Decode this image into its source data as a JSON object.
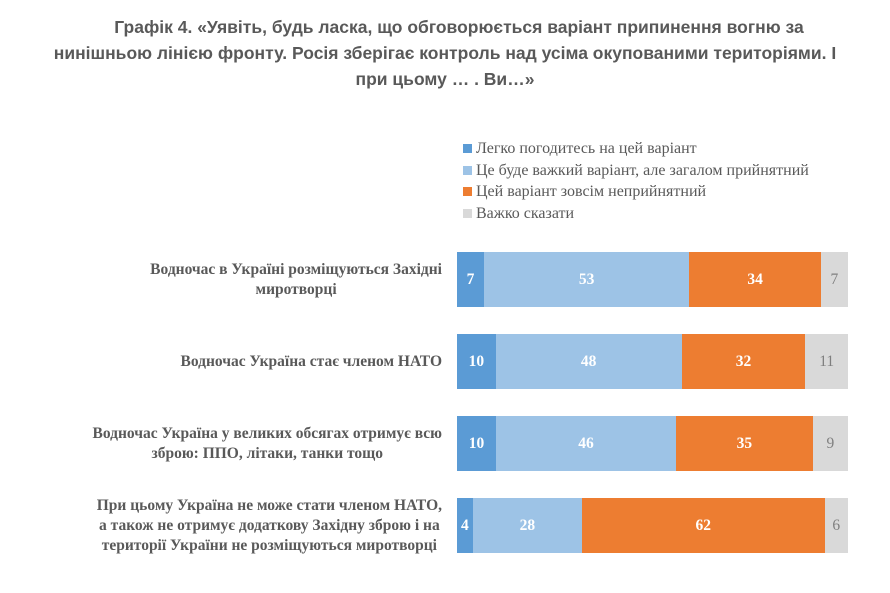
{
  "title": {
    "lines": [
      "Графік 4. «Уявіть, будь ласка, що обговорюється варіант припинення вогню за",
      "нинішньою лінією фронту. Росія зберігає контроль над усіма окупованими територіями. І",
      "при цьому … . Ви…»"
    ]
  },
  "chart_data": {
    "type": "bar",
    "orientation": "horizontal",
    "stacked": "percent",
    "title": "Графік 4. «Уявіть, будь ласка, що обговорюється варіант припинення вогню за нинішньою лінією фронту. Росія зберігає контроль над усіма окупованими територіями. І при цьому … . Ви…»",
    "xlabel": "",
    "ylabel": "",
    "xlim": [
      0,
      100
    ],
    "grid": false,
    "legend": "top-right",
    "categories": [
      "Водночас в Україні розміщуються Західні\nмиротворці",
      "Водночас Україна стає членом НАТО",
      "Водночас Україна у великих обсягах отримує всю\nзброю: ППО, літаки, танки тощо",
      "При цьому Україна не може стати членом НАТО,\nа також не отримує додаткову Західну зброю і на\nтериторії України не розміщуються миротворці"
    ],
    "series": [
      {
        "name": "Легко погодитесь на цей варіант",
        "color": "#5B9BD5",
        "label_color": "#ffffff",
        "label_bold": true,
        "values": [
          7,
          10,
          10,
          4
        ]
      },
      {
        "name": "Це буде важкий варіант, але загалом прийнятний",
        "color": "#9DC3E6",
        "label_color": "#ffffff",
        "label_bold": true,
        "values": [
          53,
          48,
          46,
          28
        ]
      },
      {
        "name": "Цей варіант зовсім неприйнятний",
        "color": "#ED7D31",
        "label_color": "#ffffff",
        "label_bold": true,
        "values": [
          34,
          32,
          35,
          62
        ]
      },
      {
        "name": "Важко сказати",
        "color": "#D9D9D9",
        "label_color": "#7F7F7F",
        "label_bold": false,
        "values": [
          7,
          11,
          9,
          6
        ]
      }
    ]
  }
}
